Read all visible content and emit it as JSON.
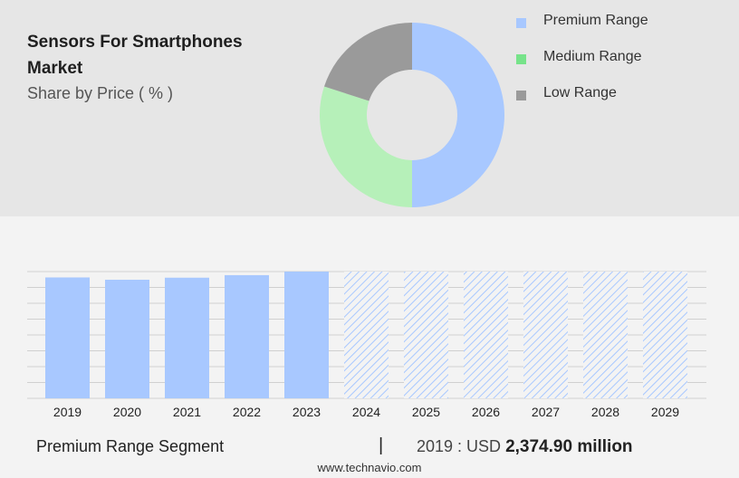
{
  "header": {
    "title": "Sensors For Smartphones Market",
    "subtitle": "Share by Price ( % )"
  },
  "legend": [
    {
      "label": "Premium Range",
      "color": "#a8c8ff"
    },
    {
      "label": "Medium Range",
      "color": "#77e38a"
    },
    {
      "label": "Low Range",
      "color": "#9a9a9a"
    }
  ],
  "chart_data": [
    {
      "type": "pie",
      "variant": "donut",
      "categories": [
        "Premium Range",
        "Medium Range",
        "Low Range"
      ],
      "values": [
        50,
        30,
        20
      ],
      "colors": [
        "#a8c8ff",
        "#b6f0b9",
        "#9a9a9a"
      ]
    },
    {
      "type": "bar",
      "categories": [
        "2019",
        "2020",
        "2021",
        "2022",
        "2023",
        "2024",
        "2025",
        "2026",
        "2027",
        "2028",
        "2029"
      ],
      "values": [
        2374.9,
        2330,
        2370,
        2420,
        2490,
        null,
        null,
        null,
        null,
        null,
        null
      ],
      "forecast": [
        false,
        false,
        false,
        false,
        false,
        true,
        true,
        true,
        true,
        true,
        true
      ],
      "ylim": [
        0,
        2490
      ],
      "grid": true,
      "color": "#a8c8ff"
    }
  ],
  "footer": {
    "segment": "Premium Range Segment",
    "divider": "|",
    "value_prefix": "2019 : USD",
    "value": "2,374.90 million",
    "source": "www.technavio.com"
  }
}
